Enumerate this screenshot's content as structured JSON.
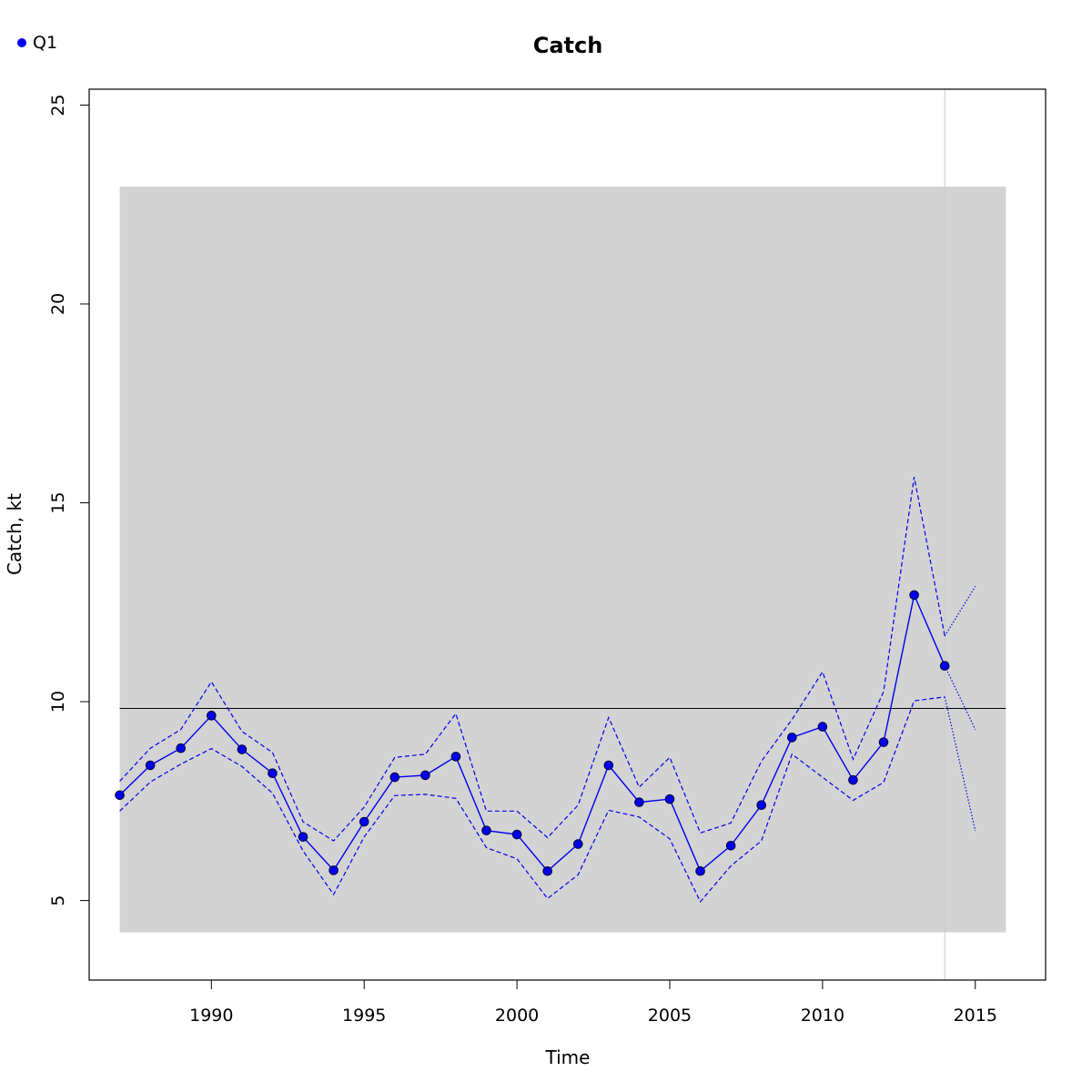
{
  "chart_data": {
    "type": "line",
    "title": "Catch",
    "xlabel": "Time",
    "ylabel": "Catch, kt",
    "xlim": [
      1986,
      2017.3
    ],
    "ylim": [
      3,
      25.4
    ],
    "x_ticks": [
      1990,
      1995,
      2000,
      2005,
      2010,
      2015
    ],
    "y_ticks": [
      5,
      10,
      15,
      20,
      25
    ],
    "x_tick_labels": [
      "1990",
      "1995",
      "2000",
      "2005",
      "2010",
      "2015"
    ],
    "y_tick_labels": [
      "5",
      "10",
      "15",
      "20",
      "25"
    ],
    "grid": false,
    "legend": {
      "position": "top-left",
      "entries": [
        "Q1"
      ]
    },
    "background_band": {
      "x": [
        1987,
        2016
      ],
      "y": [
        4.2,
        22.95
      ],
      "color": "#d3d3d3"
    },
    "reference_hline": {
      "y": 9.83,
      "x": [
        1987,
        2016
      ],
      "color": "#000000"
    },
    "reference_vline": {
      "x": 2014,
      "color": "#c8c8c8"
    },
    "series": [
      {
        "name": "Q1",
        "color": "#0000ee",
        "x": [
          1987,
          1988,
          1989,
          1990,
          1991,
          1992,
          1993,
          1994,
          1995,
          1996,
          1997,
          1998,
          1999,
          2000,
          2001,
          2002,
          2003,
          2004,
          2005,
          2006,
          2007,
          2008,
          2009,
          2010,
          2011,
          2012,
          2013,
          2014
        ],
        "values": [
          7.65,
          8.4,
          8.83,
          9.65,
          8.8,
          8.2,
          6.6,
          5.76,
          6.98,
          8.1,
          8.15,
          8.62,
          6.76,
          6.66,
          5.74,
          6.42,
          8.4,
          7.47,
          7.55,
          5.74,
          6.38,
          7.4,
          9.1,
          9.37,
          8.03,
          8.98,
          12.68,
          10.9
        ],
        "upper": [
          8.0,
          8.83,
          9.3,
          10.5,
          9.25,
          8.72,
          6.98,
          6.5,
          7.35,
          8.6,
          8.68,
          9.7,
          7.25,
          7.25,
          6.58,
          7.4,
          9.6,
          7.85,
          8.6,
          6.7,
          6.95,
          8.5,
          9.55,
          10.75,
          8.55,
          10.25,
          15.65,
          11.65
        ],
        "lower": [
          7.25,
          7.98,
          8.43,
          8.82,
          8.37,
          7.7,
          6.25,
          5.15,
          6.6,
          7.64,
          7.67,
          7.57,
          6.33,
          6.05,
          5.05,
          5.65,
          7.27,
          7.1,
          6.55,
          4.97,
          5.87,
          6.5,
          8.68,
          8.1,
          7.52,
          7.97,
          10.02,
          10.12
        ],
        "projection": {
          "x": [
            2014,
            2015
          ],
          "values": [
            10.9,
            9.3
          ],
          "upper": [
            11.65,
            12.9
          ],
          "lower": [
            10.12,
            6.75
          ]
        }
      }
    ]
  }
}
